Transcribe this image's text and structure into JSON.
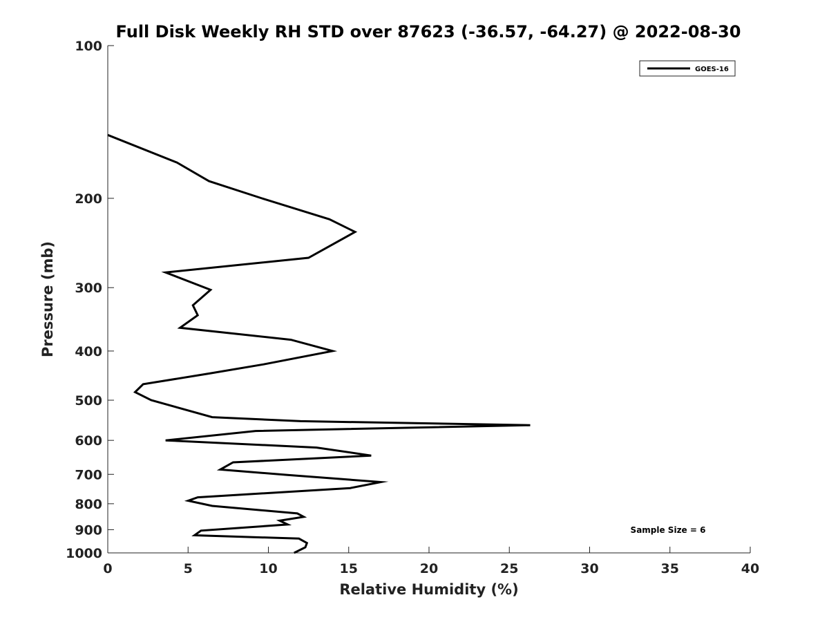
{
  "chart_data": {
    "type": "line",
    "title": "Full Disk Weekly RH STD over 87623 (-36.57, -64.27) @ 2022-08-30",
    "xlabel": "Relative Humidity (%)",
    "ylabel": "Pressure (mb)",
    "xlim": [
      0,
      40
    ],
    "ylim": [
      100,
      1000
    ],
    "y_scale": "log",
    "y_reversed": true,
    "x_ticks": [
      0,
      5,
      10,
      15,
      20,
      25,
      30,
      35,
      40
    ],
    "x_tick_labels": [
      "0",
      "5",
      "10",
      "15",
      "20",
      "25",
      "30",
      "35",
      "40"
    ],
    "y_ticks": [
      100,
      200,
      300,
      400,
      500,
      600,
      700,
      800,
      900,
      1000
    ],
    "y_tick_labels": [
      "100",
      "200",
      "300",
      "400",
      "500",
      "600",
      "700",
      "800",
      "900",
      "1000"
    ],
    "grid": false,
    "legend": {
      "position": "top-right",
      "entries": [
        "GOES-16"
      ]
    },
    "annotation": "Sample Size = 6",
    "series": [
      {
        "name": "GOES-16",
        "color": "#000000",
        "x": [
          0.0,
          4.3,
          6.3,
          9.6,
          13.8,
          15.4,
          12.5,
          3.6,
          6.4,
          5.3,
          5.6,
          4.5,
          11.4,
          14.0,
          9.7,
          6.3,
          2.2,
          1.7,
          2.7,
          6.5,
          12.0,
          26.3,
          9.2,
          3.6,
          13.0,
          16.4,
          7.8,
          7.0,
          11.2,
          17.0,
          15.1,
          5.6,
          5.0,
          6.5,
          11.8,
          12.2,
          10.7,
          11.2,
          5.8,
          5.4,
          11.9,
          12.4,
          12.3,
          11.6
        ],
        "y": [
          150,
          170,
          185,
          200,
          220,
          233,
          262,
          280,
          303,
          325,
          340,
          360,
          380,
          400,
          425,
          443,
          465,
          482,
          500,
          540,
          550,
          560,
          575,
          600,
          620,
          643,
          663,
          685,
          702,
          725,
          745,
          777,
          789,
          808,
          836,
          849,
          864,
          879,
          904,
          923,
          937,
          956,
          975,
          1000
        ]
      }
    ]
  }
}
